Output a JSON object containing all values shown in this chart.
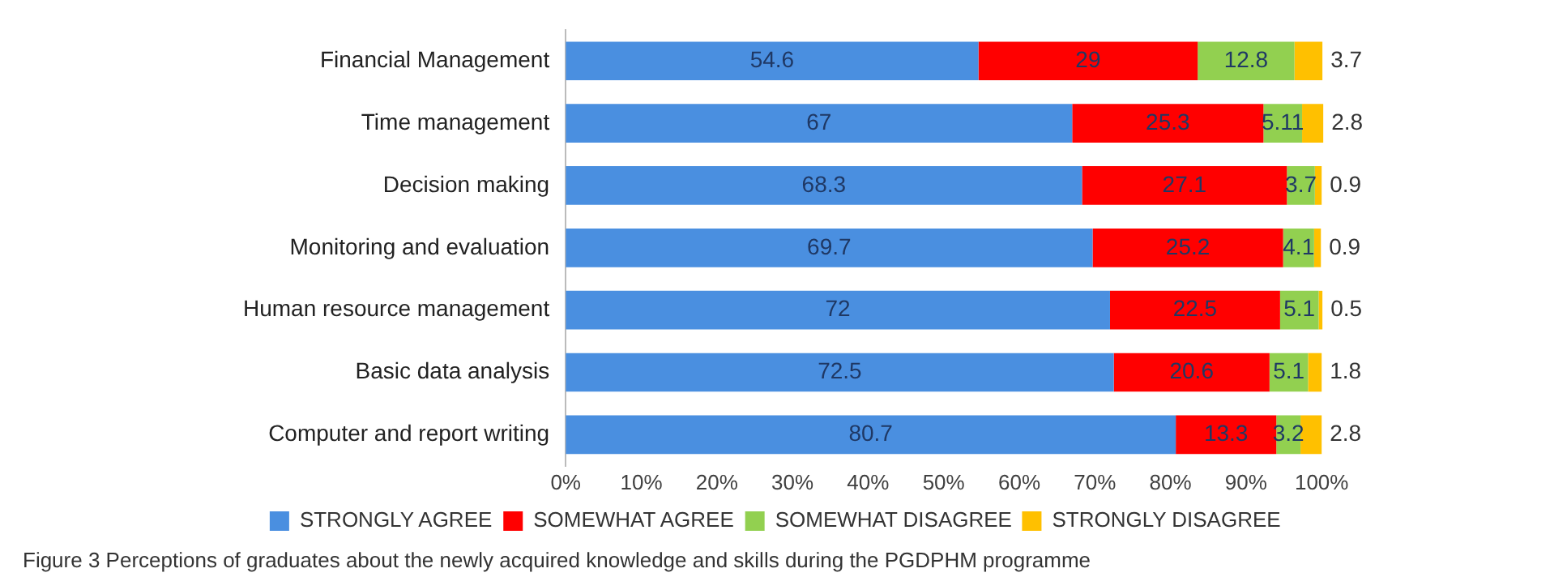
{
  "chart_data": {
    "type": "bar",
    "orientation": "horizontal",
    "stacked": true,
    "data_labels": true,
    "grid": false,
    "legend": "bottom",
    "categories": [
      "Financial Management",
      "Time management",
      "Decision making",
      "Monitoring and evaluation",
      "Human resource management",
      "Basic data analysis",
      "Computer and report writing"
    ],
    "series": [
      {
        "name": "STRONGLY AGREE",
        "color": "#4a8fe0",
        "values": [
          54.6,
          67,
          68.3,
          69.7,
          72,
          72.5,
          80.7
        ]
      },
      {
        "name": "SOMEWHAT AGREE",
        "color": "#ff0000",
        "values": [
          29,
          25.3,
          27.1,
          25.2,
          22.5,
          20.6,
          13.3
        ]
      },
      {
        "name": "SOMEWHAT DISAGREE",
        "color": "#92d050",
        "values": [
          12.8,
          5.11,
          3.7,
          4.1,
          5.1,
          5.1,
          3.2
        ]
      },
      {
        "name": "STRONGLY DISAGREE",
        "color": "#ffc000",
        "values": [
          3.7,
          2.8,
          0.9,
          0.9,
          0.5,
          1.8,
          2.8
        ]
      }
    ],
    "xlim": [
      0,
      100.3
    ],
    "xticks": [
      {
        "value": 0,
        "label": "0%"
      },
      {
        "value": 10,
        "label": "10%"
      },
      {
        "value": 20,
        "label": "20%"
      },
      {
        "value": 30,
        "label": "30%"
      },
      {
        "value": 40,
        "label": "40%"
      },
      {
        "value": 50,
        "label": "50%"
      },
      {
        "value": 60,
        "label": "60%"
      },
      {
        "value": 70,
        "label": "70%"
      },
      {
        "value": 80,
        "label": "80%"
      },
      {
        "value": 90,
        "label": "90%"
      },
      {
        "value": 100,
        "label": "100%"
      }
    ],
    "annotations": [
      "Figure 3 Perceptions of graduates about the newly acquired knowledge and skills during the PGDPHM programme"
    ]
  }
}
